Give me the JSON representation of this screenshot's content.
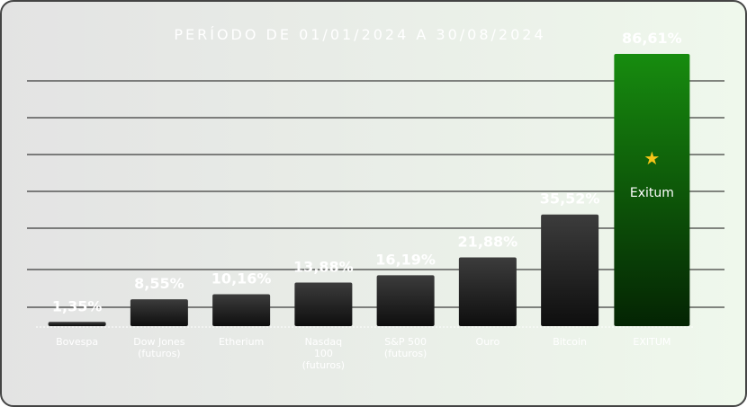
{
  "chart_data": {
    "type": "bar",
    "title": "PERÍODO DE 01/01/2024 A 30/08/2024",
    "categories": [
      "Bovespa",
      "Dow Jones (futuros)",
      "Etherium",
      "Nasdaq 100 (futuros)",
      "S&P 500 (futuros)",
      "Ouro",
      "Bitcoin",
      "EXITUM"
    ],
    "values": [
      1.35,
      8.55,
      10.16,
      13.88,
      16.19,
      21.88,
      35.52,
      86.61
    ],
    "value_labels": [
      "1,35%",
      "8,55%",
      "10,16%",
      "13,88%",
      "16,19%",
      "21,88%",
      "35,52%",
      "86,61%"
    ],
    "color": "#222222",
    "highlight": {
      "index": 7,
      "label": "Exitum",
      "color": "#168a0e"
    }
  }
}
